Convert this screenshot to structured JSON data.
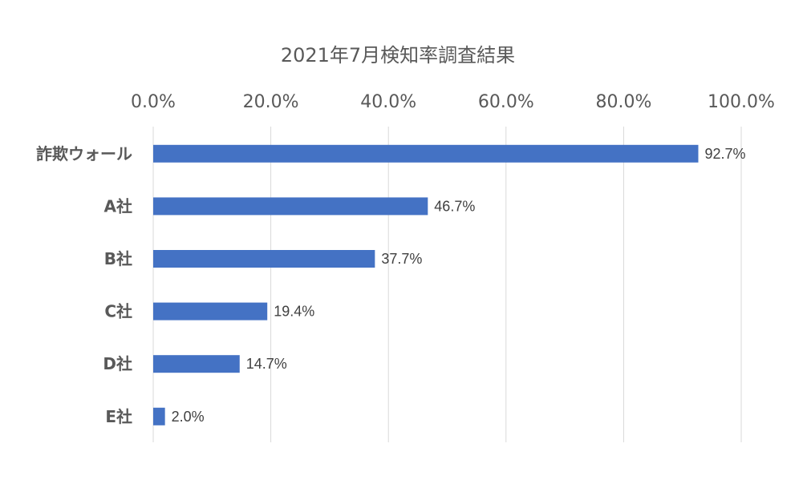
{
  "chart_data": {
    "type": "bar",
    "orientation": "horizontal",
    "title": "2021年7月検知率調査結果",
    "categories": [
      "詐欺ウォール",
      "A社",
      "B社",
      "C社",
      "D社",
      "E社"
    ],
    "values": [
      92.7,
      46.7,
      37.7,
      19.4,
      14.7,
      2.0
    ],
    "data_labels": [
      "92.7%",
      "46.7%",
      "37.7%",
      "19.4%",
      "14.7%",
      "2.0%"
    ],
    "xlim": [
      0,
      100
    ],
    "x_ticks": [
      0,
      20,
      40,
      60,
      80,
      100
    ],
    "x_tick_labels": [
      "0.0%",
      "20.0%",
      "40.0%",
      "60.0%",
      "80.0%",
      "100.0%"
    ],
    "x_axis_position": "top",
    "grid": true,
    "bar_color": "#4472C4",
    "grid_color": "#D9D9D9"
  }
}
